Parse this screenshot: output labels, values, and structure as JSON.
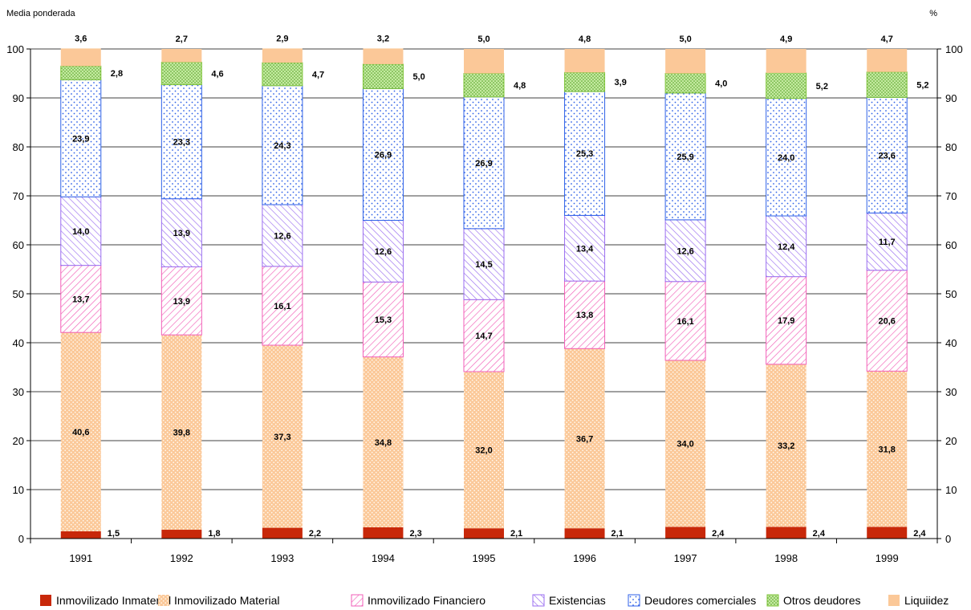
{
  "chart_data": {
    "type": "bar",
    "stacked": true,
    "left_caption": "Media ponderada",
    "right_caption": "%",
    "categories": [
      "1991",
      "1992",
      "1993",
      "1994",
      "1995",
      "1996",
      "1997",
      "1998",
      "1999"
    ],
    "ylim": [
      0,
      100
    ],
    "yticks": [
      0,
      10,
      20,
      30,
      40,
      50,
      60,
      70,
      80,
      90,
      100
    ],
    "grid": true,
    "legend_position": "bottom",
    "series": [
      {
        "name": "Inmovilizado Inmaterial",
        "color": "#c8280a",
        "values": [
          1.5,
          1.8,
          2.2,
          2.3,
          2.1,
          2.1,
          2.4,
          2.4,
          2.4
        ],
        "labels": [
          "1,5",
          "1,8",
          "2,2",
          "2,3",
          "2,1",
          "2,1",
          "2,4",
          "2,4",
          "2,4"
        ]
      },
      {
        "name": "Inmovilizado Material",
        "color": "#fbc898",
        "values": [
          40.6,
          39.8,
          37.3,
          34.8,
          32.0,
          36.7,
          34.0,
          33.2,
          31.8
        ],
        "labels": [
          "40,6",
          "39,8",
          "37,3",
          "34,8",
          "32,0",
          "36,7",
          "34,0",
          "33,2",
          "31,8"
        ]
      },
      {
        "name": "Inmovilizado Financiero",
        "color": "#f25fb8",
        "values": [
          13.7,
          13.9,
          16.1,
          15.3,
          14.7,
          13.8,
          16.1,
          17.9,
          20.6
        ],
        "labels": [
          "13,7",
          "13,9",
          "16,1",
          "15,3",
          "14,7",
          "13,8",
          "16,1",
          "17,9",
          "20,6"
        ]
      },
      {
        "name": "Existencias",
        "color": "#9a6ef0",
        "values": [
          14.0,
          13.9,
          12.6,
          12.6,
          14.5,
          13.4,
          12.6,
          12.4,
          11.7
        ],
        "labels": [
          "14,0",
          "13,9",
          "12,6",
          "12,6",
          "14,5",
          "13,4",
          "12,6",
          "12,4",
          "11,7"
        ]
      },
      {
        "name": "Deudores comerciales",
        "color": "#2f62e8",
        "values": [
          23.9,
          23.3,
          24.3,
          26.9,
          26.9,
          25.3,
          25.9,
          24.0,
          23.6
        ],
        "labels": [
          "23,9",
          "23,3",
          "24,3",
          "26,9",
          "26,9",
          "25,3",
          "25,9",
          "24,0",
          "23,6"
        ]
      },
      {
        "name": "Otros deudores",
        "color": "#7fc43a",
        "values": [
          2.8,
          4.6,
          4.7,
          5.0,
          4.8,
          3.9,
          4.0,
          5.2,
          5.2
        ],
        "labels": [
          "2,8",
          "4,6",
          "4,7",
          "5,0",
          "4,8",
          "3,9",
          "4,0",
          "5,2",
          "5,2"
        ]
      },
      {
        "name": "Liquiidez",
        "color": "#fbc898",
        "values": [
          3.6,
          2.7,
          2.9,
          3.2,
          5.0,
          4.8,
          5.0,
          4.9,
          4.7
        ],
        "labels": [
          "3,6",
          "2,7",
          "2,9",
          "3,2",
          "5,0",
          "4,8",
          "5,0",
          "4,9",
          "4,7"
        ]
      }
    ]
  }
}
